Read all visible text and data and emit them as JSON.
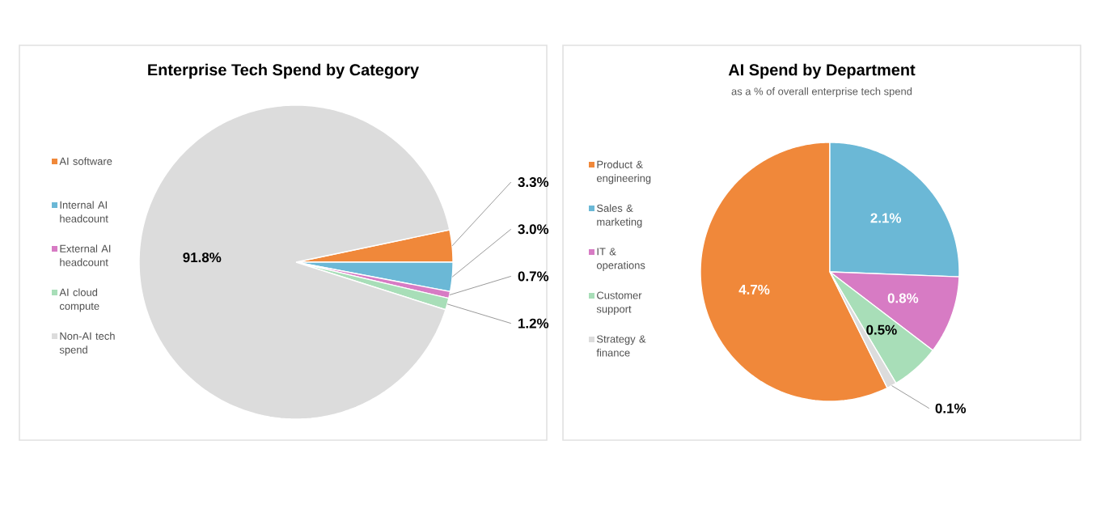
{
  "chart_data": [
    {
      "type": "pie",
      "title": "Enterprise Tech Spend by Category",
      "categories": [
        "AI software",
        "Internal AI headcount",
        "External AI headcount",
        "AI cloud compute",
        "Non-AI tech spend"
      ],
      "values": [
        3.3,
        3.0,
        0.7,
        1.2,
        91.8
      ],
      "colors": [
        "#f0883a",
        "#6bb8d6",
        "#d77bc4",
        "#a8deb8",
        "#dcdcdc"
      ],
      "value_labels": [
        "3.3%",
        "3.0%",
        "0.7%",
        "1.2%",
        "91.8%"
      ],
      "legend": "left"
    },
    {
      "type": "pie",
      "title": "AI Spend by Department",
      "subtitle": "as a % of overall enterprise tech spend",
      "categories": [
        "Product & engineering",
        "Sales & marketing",
        "IT & operations",
        "Customer support",
        "Strategy & finance"
      ],
      "values": [
        4.7,
        2.1,
        0.8,
        0.5,
        0.1
      ],
      "colors": [
        "#f0883a",
        "#6bb8d6",
        "#d77bc4",
        "#a8deb8",
        "#dcdcdc"
      ],
      "value_labels": [
        "4.7%",
        "2.1%",
        "0.8%",
        "0.5%",
        "0.1%"
      ],
      "legend": "left"
    }
  ]
}
